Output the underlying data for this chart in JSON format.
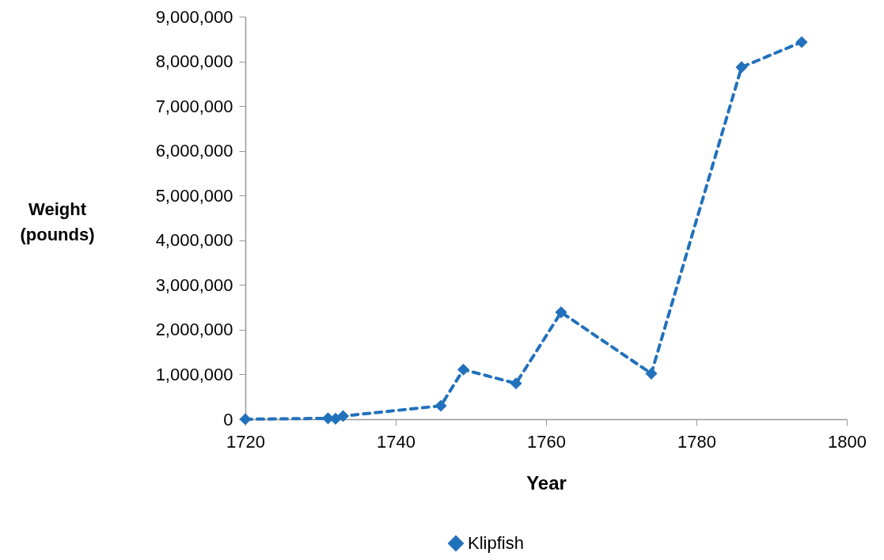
{
  "chart_data": {
    "type": "line",
    "xlabel": "Year",
    "ylabel": "Weight (pounds)",
    "x": [
      1720,
      1731,
      1732,
      1733,
      1746,
      1749,
      1756,
      1762,
      1774,
      1786,
      1794
    ],
    "series": [
      {
        "name": "Klipfish",
        "color": "#2271bc",
        "values": [
          0,
          20000,
          10000,
          70000,
          300000,
          1110000,
          800000,
          2390000,
          1020000,
          7870000,
          8430000
        ]
      }
    ],
    "xlim": [
      1720,
      1800
    ],
    "xticks": [
      1720,
      1740,
      1760,
      1780,
      1800
    ],
    "ylim": [
      0,
      9000000
    ],
    "yticks": [
      0,
      {
        "value": 1000000,
        "label": "1,000,000"
      },
      {
        "value": 2000000,
        "label": "2,000,000"
      },
      {
        "value": 3000000,
        "label": "3,000,000"
      },
      {
        "value": 4000000,
        "label": "4,000,000"
      },
      {
        "value": 5000000,
        "label": "5,000,000"
      },
      {
        "value": 6000000,
        "label": "6,000,000"
      },
      {
        "value": 7000000,
        "label": "7,000,000"
      },
      {
        "value": 8000000,
        "label": "8,000,000"
      },
      {
        "value": 9000000,
        "label": "9,000,000"
      }
    ],
    "grid": false,
    "legend": "bottom",
    "marker": "diamond",
    "line_style": "dashed"
  }
}
